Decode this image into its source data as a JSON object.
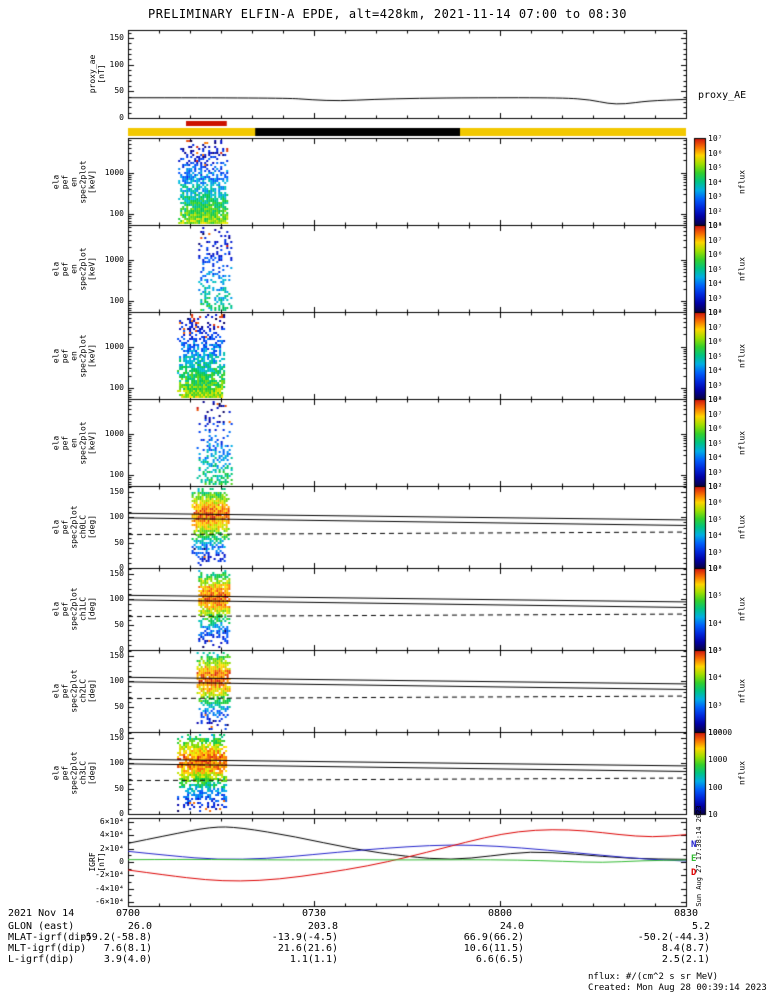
{
  "title": "PRELIMINARY ELFIN-A EPDE, alt=428km, 2021-11-14 07:00 to 08:30",
  "footer": {
    "nflux_note": "nflux: #/(cm^2 s sr MeV)",
    "created": "Created: Mon Aug 28 00:39:14 2023",
    "side_timestamp": "Sun Aug 27 17:38:14 2023"
  },
  "bottom_table": {
    "date": "2021 Nov 14",
    "rows": [
      {
        "label": "GLON (east)",
        "values": [
          "26.0",
          "203.8",
          "24.0",
          "5.2"
        ]
      },
      {
        "label": "MLAT-igrf(dip)",
        "values": [
          "-59.2(-58.8)",
          "-13.9(-4.5)",
          "66.9(66.2)",
          "-50.2(-44.3)"
        ]
      },
      {
        "label": "MLT-igrf(dip)",
        "values": [
          "7.6(8.1)",
          "21.6(21.6)",
          "10.6(11.5)",
          "8.4(8.7)"
        ]
      },
      {
        "label": "L-igrf(dip)",
        "values": [
          "3.9(4.0)",
          "1.1(1.1)",
          "6.6(6.5)",
          "2.5(2.1)"
        ]
      }
    ]
  },
  "chart_data": {
    "type": "multi-panel time-series with spectrograms",
    "xaxis": {
      "span_minutes": 90,
      "minor_tick_minutes": 5,
      "ticks": [
        {
          "f": 0,
          "label": "0700"
        },
        {
          "f": 0.3333,
          "label": "0730"
        },
        {
          "f": 0.6667,
          "label": "0800"
        },
        {
          "f": 1,
          "label": "0830"
        }
      ]
    },
    "bars": {
      "red": {
        "f0": 0.104,
        "f1": 0.177,
        "color": "#cc1100"
      },
      "base": {
        "color": "#f2c800"
      },
      "black_segment": {
        "f0": 0.228,
        "f1": 0.595,
        "color": "#000000"
      }
    },
    "lc_lines": [
      {
        "style": "solid",
        "y0_deg": 108,
        "y1_deg": 95
      },
      {
        "style": "solid",
        "y0_deg": 99,
        "y1_deg": 84
      },
      {
        "style": "dashed",
        "y0_deg": 66,
        "y1_deg": 71
      }
    ],
    "panels": [
      {
        "id": "proxy_ae",
        "type": "line",
        "ylabel_lines": [
          "proxy_ae",
          "[nT]"
        ],
        "right_label": "proxy_AE",
        "ylim": [
          0,
          165
        ],
        "yticks": [
          {
            "v": 0,
            "label": "0"
          },
          {
            "v": 50,
            "label": "50"
          },
          {
            "v": 100,
            "label": "100"
          },
          {
            "v": 150,
            "label": "150"
          }
        ],
        "series": [
          {
            "name": "proxy_AE",
            "color": "#000000",
            "points": [
              [
                0,
                38
              ],
              [
                0.28,
                38
              ],
              [
                0.33,
                34
              ],
              [
                0.38,
                32
              ],
              [
                0.44,
                35
              ],
              [
                0.52,
                37
              ],
              [
                0.62,
                38
              ],
              [
                0.78,
                38
              ],
              [
                0.83,
                34
              ],
              [
                0.86,
                27
              ],
              [
                0.89,
                26
              ],
              [
                0.93,
                32
              ],
              [
                1,
                35
              ]
            ]
          }
        ]
      },
      {
        "id": "en_spec_0",
        "type": "spectrogram_log",
        "ylabel_lines": [
          "ela",
          "pef",
          "en",
          "spec2plot",
          "[keV]"
        ],
        "ylim_kev": [
          55,
          6800
        ],
        "yticks": [
          {
            "v": 100,
            "label": "100"
          },
          {
            "v": 1000,
            "label": "1000"
          }
        ],
        "burst": {
          "f0": 0.09,
          "f1": 0.179,
          "density": 1.0,
          "vmax": 0.66,
          "seed": 11
        },
        "colorbar": {
          "label": "nflux",
          "ticks": [
            "10⁷",
            "10⁶",
            "10⁵",
            "10⁴",
            "10³",
            "10²",
            "10¹"
          ]
        }
      },
      {
        "id": "en_spec_1",
        "type": "spectrogram_log",
        "ylabel_lines": [
          "ela",
          "pef",
          "en",
          "spec2plot",
          "[keV]"
        ],
        "ylim_kev": [
          55,
          6800
        ],
        "yticks": [
          {
            "v": 100,
            "label": "100"
          },
          {
            "v": 1000,
            "label": "1000"
          }
        ],
        "burst": {
          "f0": 0.126,
          "f1": 0.186,
          "density": 0.42,
          "vmax": 0.5,
          "seed": 22
        },
        "colorbar": {
          "label": "nflux",
          "ticks": [
            "10⁸",
            "10⁷",
            "10⁶",
            "10⁵",
            "10⁴",
            "10³",
            "10²"
          ]
        }
      },
      {
        "id": "en_spec_2",
        "type": "spectrogram_log",
        "ylabel_lines": [
          "ela",
          "pef",
          "en",
          "spec2plot",
          "[keV]"
        ],
        "ylim_kev": [
          55,
          6800
        ],
        "yticks": [
          {
            "v": 100,
            "label": "100"
          },
          {
            "v": 1000,
            "label": "1000"
          }
        ],
        "burst": {
          "f0": 0.088,
          "f1": 0.174,
          "density": 1.0,
          "vmax": 0.68,
          "seed": 33
        },
        "colorbar": {
          "label": "nflux",
          "ticks": [
            "10⁸",
            "10⁷",
            "10⁶",
            "10⁵",
            "10⁴",
            "10³",
            "10²"
          ]
        }
      },
      {
        "id": "en_spec_3",
        "type": "spectrogram_log",
        "ylabel_lines": [
          "ela",
          "pef",
          "en",
          "spec2plot",
          "[keV]"
        ],
        "ylim_kev": [
          55,
          6800
        ],
        "yticks": [
          {
            "v": 100,
            "label": "100"
          },
          {
            "v": 1000,
            "label": "1000"
          }
        ],
        "burst": {
          "f0": 0.123,
          "f1": 0.186,
          "density": 0.45,
          "vmax": 0.52,
          "seed": 44
        },
        "colorbar": {
          "label": "nflux",
          "ticks": [
            "10⁸",
            "10⁷",
            "10⁶",
            "10⁵",
            "10⁴",
            "10³",
            "10²"
          ]
        }
      },
      {
        "id": "pa_spec_ch0",
        "type": "spectrogram_linear",
        "ylabel_lines": [
          "ela",
          "pef",
          "spec2plot",
          "ch0LC",
          "[deg]"
        ],
        "ylim": [
          0,
          162
        ],
        "yticks": [
          {
            "v": 0,
            "label": "0"
          },
          {
            "v": 50,
            "label": "50"
          },
          {
            "v": 100,
            "label": "100"
          },
          {
            "v": 150,
            "label": "150"
          }
        ],
        "burst": {
          "f0": 0.114,
          "f1": 0.179,
          "density": 0.95,
          "seed": 55
        },
        "colorbar": {
          "label": "nflux",
          "ticks": [
            "10⁷",
            "10⁶",
            "10⁵",
            "10⁴",
            "10³",
            "10²"
          ]
        }
      },
      {
        "id": "pa_spec_ch1",
        "type": "spectrogram_linear",
        "ylabel_lines": [
          "ela",
          "pef",
          "spec2plot",
          "ch1LC",
          "[deg]"
        ],
        "ylim": [
          0,
          162
        ],
        "yticks": [
          {
            "v": 0,
            "label": "0"
          },
          {
            "v": 50,
            "label": "50"
          },
          {
            "v": 100,
            "label": "100"
          },
          {
            "v": 150,
            "label": "150"
          }
        ],
        "burst": {
          "f0": 0.126,
          "f1": 0.183,
          "density": 0.9,
          "seed": 66
        },
        "colorbar": {
          "label": "nflux",
          "ticks": [
            "10⁶",
            "10⁵",
            "10⁴",
            "10³"
          ]
        }
      },
      {
        "id": "pa_spec_ch2",
        "type": "spectrogram_linear",
        "ylabel_lines": [
          "ela",
          "pef",
          "spec2plot",
          "ch2LC",
          "[deg]"
        ],
        "ylim": [
          0,
          162
        ],
        "yticks": [
          {
            "v": 0,
            "label": "0"
          },
          {
            "v": 50,
            "label": "50"
          },
          {
            "v": 100,
            "label": "100"
          },
          {
            "v": 150,
            "label": "150"
          }
        ],
        "burst": {
          "f0": 0.123,
          "f1": 0.183,
          "density": 0.85,
          "seed": 77
        },
        "colorbar": {
          "label": "nflux",
          "ticks": [
            "10⁵",
            "10⁴",
            "10³",
            "10²"
          ]
        }
      },
      {
        "id": "pa_spec_ch3",
        "type": "spectrogram_linear",
        "ylabel_lines": [
          "ela",
          "pef",
          "spec2plot",
          "ch3LC",
          "[deg]"
        ],
        "ylim": [
          0,
          162
        ],
        "yticks": [
          {
            "v": 0,
            "label": "0"
          },
          {
            "v": 50,
            "label": "50"
          },
          {
            "v": 100,
            "label": "100"
          },
          {
            "v": 150,
            "label": "150"
          }
        ],
        "burst": {
          "f0": 0.088,
          "f1": 0.176,
          "density": 0.9,
          "seed": 88
        },
        "colorbar": {
          "label": "nflux",
          "ticks": [
            "10000",
            "1000",
            "100",
            "10"
          ]
        }
      },
      {
        "id": "igrf",
        "type": "line",
        "ylabel_lines": [
          "IGRF",
          "[nT]"
        ],
        "ylim": [
          -66000,
          66000
        ],
        "yticks": [
          {
            "v": 60000,
            "label": "6×10⁴"
          },
          {
            "v": 40000,
            "label": "4×10⁴"
          },
          {
            "v": 20000,
            "label": "2×10⁴"
          },
          {
            "v": 0,
            "label": "0"
          },
          {
            "v": -20000,
            "label": "-2×10⁴"
          },
          {
            "v": -40000,
            "label": "-4×10⁴"
          },
          {
            "v": -60000,
            "label": "-6×10⁴"
          }
        ],
        "legend": [
          {
            "label": "N",
            "color": "#2222cc"
          },
          {
            "label": "E",
            "color": "#33bb33"
          },
          {
            "label": "D",
            "color": "#dd0000"
          }
        ],
        "series": [
          {
            "name": "black",
            "color": "#000000",
            "points": [
              [
                0,
                28000
              ],
              [
                0.07,
                40000
              ],
              [
                0.15,
                53000
              ],
              [
                0.2,
                52000
              ],
              [
                0.3,
                38000
              ],
              [
                0.4,
                20000
              ],
              [
                0.5,
                8000
              ],
              [
                0.58,
                3000
              ],
              [
                0.65,
                9000
              ],
              [
                0.72,
                16000
              ],
              [
                0.8,
                12000
              ],
              [
                0.9,
                5000
              ],
              [
                1,
                4000
              ]
            ]
          },
          {
            "name": "blue",
            "color": "#2222cc",
            "points": [
              [
                0,
                16000
              ],
              [
                0.08,
                9000
              ],
              [
                0.16,
                3500
              ],
              [
                0.25,
                5000
              ],
              [
                0.33,
                11000
              ],
              [
                0.42,
                18000
              ],
              [
                0.5,
                23000
              ],
              [
                0.58,
                26000
              ],
              [
                0.66,
                24000
              ],
              [
                0.75,
                18000
              ],
              [
                0.85,
                10000
              ],
              [
                0.93,
                4000
              ],
              [
                1,
                1500
              ]
            ]
          },
          {
            "name": "red",
            "color": "#dd0000",
            "points": [
              [
                0,
                -12000
              ],
              [
                0.07,
                -20000
              ],
              [
                0.14,
                -27000
              ],
              [
                0.2,
                -29000
              ],
              [
                0.27,
                -26000
              ],
              [
                0.35,
                -17000
              ],
              [
                0.43,
                -6000
              ],
              [
                0.5,
                7000
              ],
              [
                0.57,
                22000
              ],
              [
                0.64,
                37000
              ],
              [
                0.7,
                46000
              ],
              [
                0.76,
                49000
              ],
              [
                0.82,
                47000
              ],
              [
                0.88,
                41000
              ],
              [
                0.94,
                37000
              ],
              [
                1,
                41000
              ]
            ]
          },
          {
            "name": "green",
            "color": "#33bb33",
            "points": [
              [
                0,
                3500
              ],
              [
                0.1,
                4000
              ],
              [
                0.2,
                3500
              ],
              [
                0.3,
                3000
              ],
              [
                0.4,
                3500
              ],
              [
                0.5,
                3000
              ],
              [
                0.6,
                3500
              ],
              [
                0.7,
                3000
              ],
              [
                0.78,
                1000
              ],
              [
                0.85,
                -1000
              ],
              [
                0.92,
                2000
              ],
              [
                1,
                3000
              ]
            ]
          }
        ]
      }
    ]
  }
}
